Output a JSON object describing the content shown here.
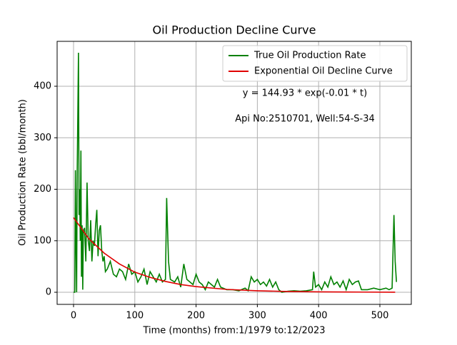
{
  "chart_data": {
    "type": "line",
    "title": "Oil Production Decline Curve",
    "xlabel": "Time (months) from:1/1979 to:12/2023",
    "ylabel": "Oil Production Rate (bbl/month)",
    "annotations": [
      "y = 144.93 * exp(-0.01 * t)",
      "Api No:2510701, Well:54-S-34"
    ],
    "xlim": [
      -26.8,
      551.3
    ],
    "ylim": [
      -23.5,
      487.2
    ],
    "xticks": [
      0,
      100,
      200,
      300,
      400,
      500
    ],
    "yticks": [
      0,
      100,
      200,
      300,
      400
    ],
    "grid": true,
    "legend": "upper right",
    "series": [
      {
        "name": "True Oil Production Rate",
        "color": "#008000",
        "x": [
          0,
          2,
          3,
          4,
          5,
          6,
          8,
          9,
          10,
          11,
          12,
          13,
          14,
          15,
          16,
          18,
          20,
          22,
          24,
          26,
          28,
          30,
          32,
          34,
          36,
          38,
          40,
          42,
          44,
          46,
          48,
          50,
          52,
          55,
          60,
          65,
          70,
          75,
          80,
          85,
          90,
          95,
          100,
          105,
          110,
          115,
          120,
          125,
          130,
          135,
          140,
          145,
          150,
          152,
          155,
          158,
          165,
          170,
          175,
          180,
          185,
          190,
          195,
          200,
          205,
          210,
          215,
          220,
          230,
          235,
          240,
          250,
          260,
          270,
          280,
          285,
          290,
          295,
          300,
          305,
          310,
          315,
          320,
          325,
          330,
          335,
          340,
          350,
          360,
          370,
          380,
          390,
          392,
          395,
          400,
          405,
          410,
          415,
          420,
          425,
          430,
          435,
          440,
          445,
          450,
          455,
          460,
          465,
          470,
          480,
          490,
          500,
          510,
          515,
          520,
          523,
          525,
          527
        ],
        "values": [
          0,
          0,
          237,
          100,
          0,
          230,
          465,
          150,
          200,
          100,
          275,
          30,
          130,
          5,
          120,
          125,
          60,
          213,
          100,
          80,
          140,
          60,
          100,
          90,
          130,
          160,
          70,
          120,
          130,
          80,
          60,
          70,
          40,
          45,
          60,
          35,
          30,
          45,
          40,
          25,
          55,
          35,
          40,
          20,
          30,
          45,
          15,
          40,
          30,
          20,
          35,
          20,
          25,
          183,
          60,
          25,
          20,
          30,
          10,
          55,
          25,
          20,
          15,
          35,
          20,
          15,
          5,
          20,
          10,
          25,
          10,
          5,
          5,
          3,
          8,
          3,
          30,
          20,
          25,
          15,
          20,
          12,
          25,
          10,
          20,
          5,
          0,
          2,
          3,
          2,
          3,
          5,
          40,
          10,
          15,
          5,
          20,
          10,
          30,
          15,
          20,
          10,
          22,
          5,
          25,
          15,
          20,
          22,
          5,
          5,
          8,
          5,
          8,
          5,
          8,
          150,
          60,
          20
        ]
      },
      {
        "name": "Exponential Oil Decline Curve",
        "color": "#e00000",
        "x": [
          0,
          25,
          50,
          75,
          100,
          125,
          150,
          175,
          200,
          250,
          300,
          350,
          400,
          450,
          525
        ],
        "values": [
          145,
          104,
          76,
          55,
          39,
          29,
          21,
          15,
          11,
          5.6,
          2.9,
          1.5,
          0.8,
          0.4,
          0.2
        ]
      }
    ]
  }
}
